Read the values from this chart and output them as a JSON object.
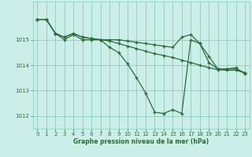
{
  "background_color": "#cceee8",
  "grid_color": "#88ccbb",
  "line_color": "#2d6b3c",
  "xlabel": "Graphe pression niveau de la mer (hPa)",
  "xlim": [
    -0.5,
    23.5
  ],
  "ylim": [
    1011.5,
    1016.5
  ],
  "yticks": [
    1012,
    1013,
    1014,
    1015
  ],
  "xticks": [
    0,
    1,
    2,
    3,
    4,
    5,
    6,
    7,
    8,
    9,
    10,
    11,
    12,
    13,
    14,
    15,
    16,
    17,
    18,
    19,
    20,
    21,
    22,
    23
  ],
  "series": [
    {
      "x": [
        0,
        1,
        2,
        3,
        4,
        5,
        6,
        7,
        8,
        9,
        10,
        11,
        12,
        13,
        14,
        15,
        16,
        17,
        18,
        19,
        20,
        21,
        22,
        23
      ],
      "y": [
        1015.8,
        1015.8,
        1015.25,
        1015.0,
        1015.2,
        1015.0,
        1015.0,
        1015.0,
        1014.7,
        1014.5,
        1014.05,
        1013.5,
        1012.9,
        1012.15,
        1012.1,
        1012.25,
        1012.1,
        1015.0,
        1014.85,
        1014.1,
        1013.85,
        1013.85,
        1013.9,
        1013.65
      ]
    },
    {
      "x": [
        0,
        1,
        2,
        3,
        4,
        5,
        6,
        7,
        8,
        9,
        10,
        11,
        12,
        13,
        14,
        15,
        16,
        17,
        18,
        19,
        20,
        21,
        22,
        23
      ],
      "y": [
        1015.8,
        1015.8,
        1015.25,
        1015.1,
        1015.25,
        1015.1,
        1015.05,
        1015.0,
        1015.0,
        1015.0,
        1014.95,
        1014.9,
        1014.85,
        1014.8,
        1014.75,
        1014.7,
        1015.1,
        1015.2,
        1014.85,
        1014.35,
        1013.85,
        1013.85,
        1013.85,
        1013.7
      ]
    },
    {
      "x": [
        0,
        1,
        2,
        3,
        4,
        5,
        6,
        7,
        8,
        9,
        10,
        11,
        12,
        13,
        14,
        15,
        16,
        17,
        18,
        19,
        20,
        21,
        22,
        23
      ],
      "y": [
        1015.8,
        1015.8,
        1015.25,
        1015.1,
        1015.25,
        1015.1,
        1015.05,
        1015.0,
        1014.95,
        1014.85,
        1014.75,
        1014.65,
        1014.55,
        1014.45,
        1014.38,
        1014.3,
        1014.2,
        1014.1,
        1014.0,
        1013.9,
        1013.82,
        1013.8,
        1013.8,
        1013.7
      ]
    }
  ]
}
